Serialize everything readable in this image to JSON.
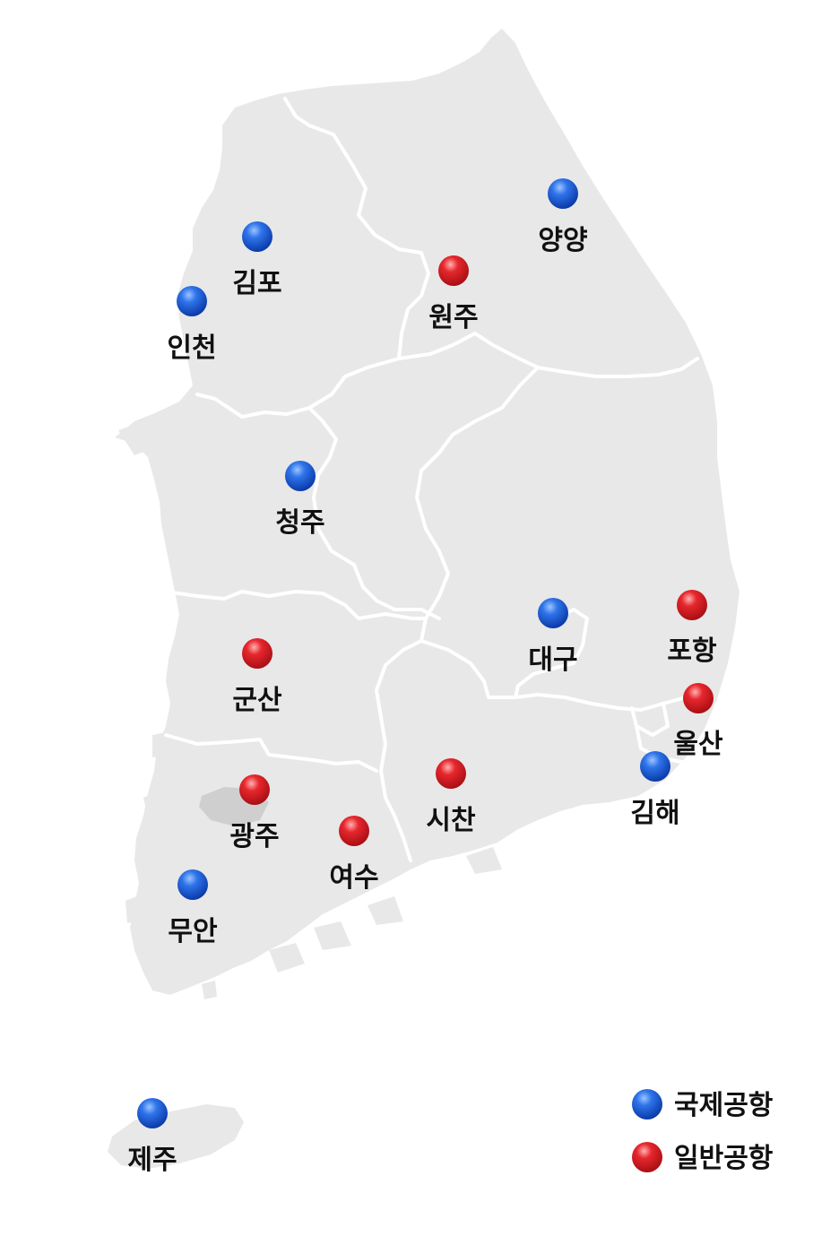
{
  "colors": {
    "land": "#e8e8e8",
    "land_dark": "#cfcfcf",
    "border": "#ffffff",
    "international": "#1a5ad6",
    "general": "#d91f26",
    "label": "#111111"
  },
  "airports": [
    {
      "id": "gimpo",
      "name": "김포",
      "type": "international"
    },
    {
      "id": "incheon",
      "name": "인천",
      "type": "international"
    },
    {
      "id": "yangyang",
      "name": "양양",
      "type": "international"
    },
    {
      "id": "wonju",
      "name": "원주",
      "type": "general"
    },
    {
      "id": "cheongju",
      "name": "청주",
      "type": "international"
    },
    {
      "id": "daegu",
      "name": "대구",
      "type": "international"
    },
    {
      "id": "pohang",
      "name": "포항",
      "type": "general"
    },
    {
      "id": "gunsan",
      "name": "군산",
      "type": "general"
    },
    {
      "id": "ulsan",
      "name": "울산",
      "type": "general"
    },
    {
      "id": "gimhae",
      "name": "김해",
      "type": "international"
    },
    {
      "id": "gwangju",
      "name": "광주",
      "type": "general"
    },
    {
      "id": "sacheon",
      "name": "시찬",
      "type": "general"
    },
    {
      "id": "yeosu",
      "name": "여수",
      "type": "general"
    },
    {
      "id": "muan",
      "name": "무안",
      "type": "international"
    },
    {
      "id": "jeju",
      "name": "제주",
      "type": "international"
    }
  ],
  "legend": {
    "international": {
      "label": "국제공항",
      "icon": "blue-dot-icon"
    },
    "general": {
      "label": "일반공항",
      "icon": "red-dot-icon"
    }
  }
}
